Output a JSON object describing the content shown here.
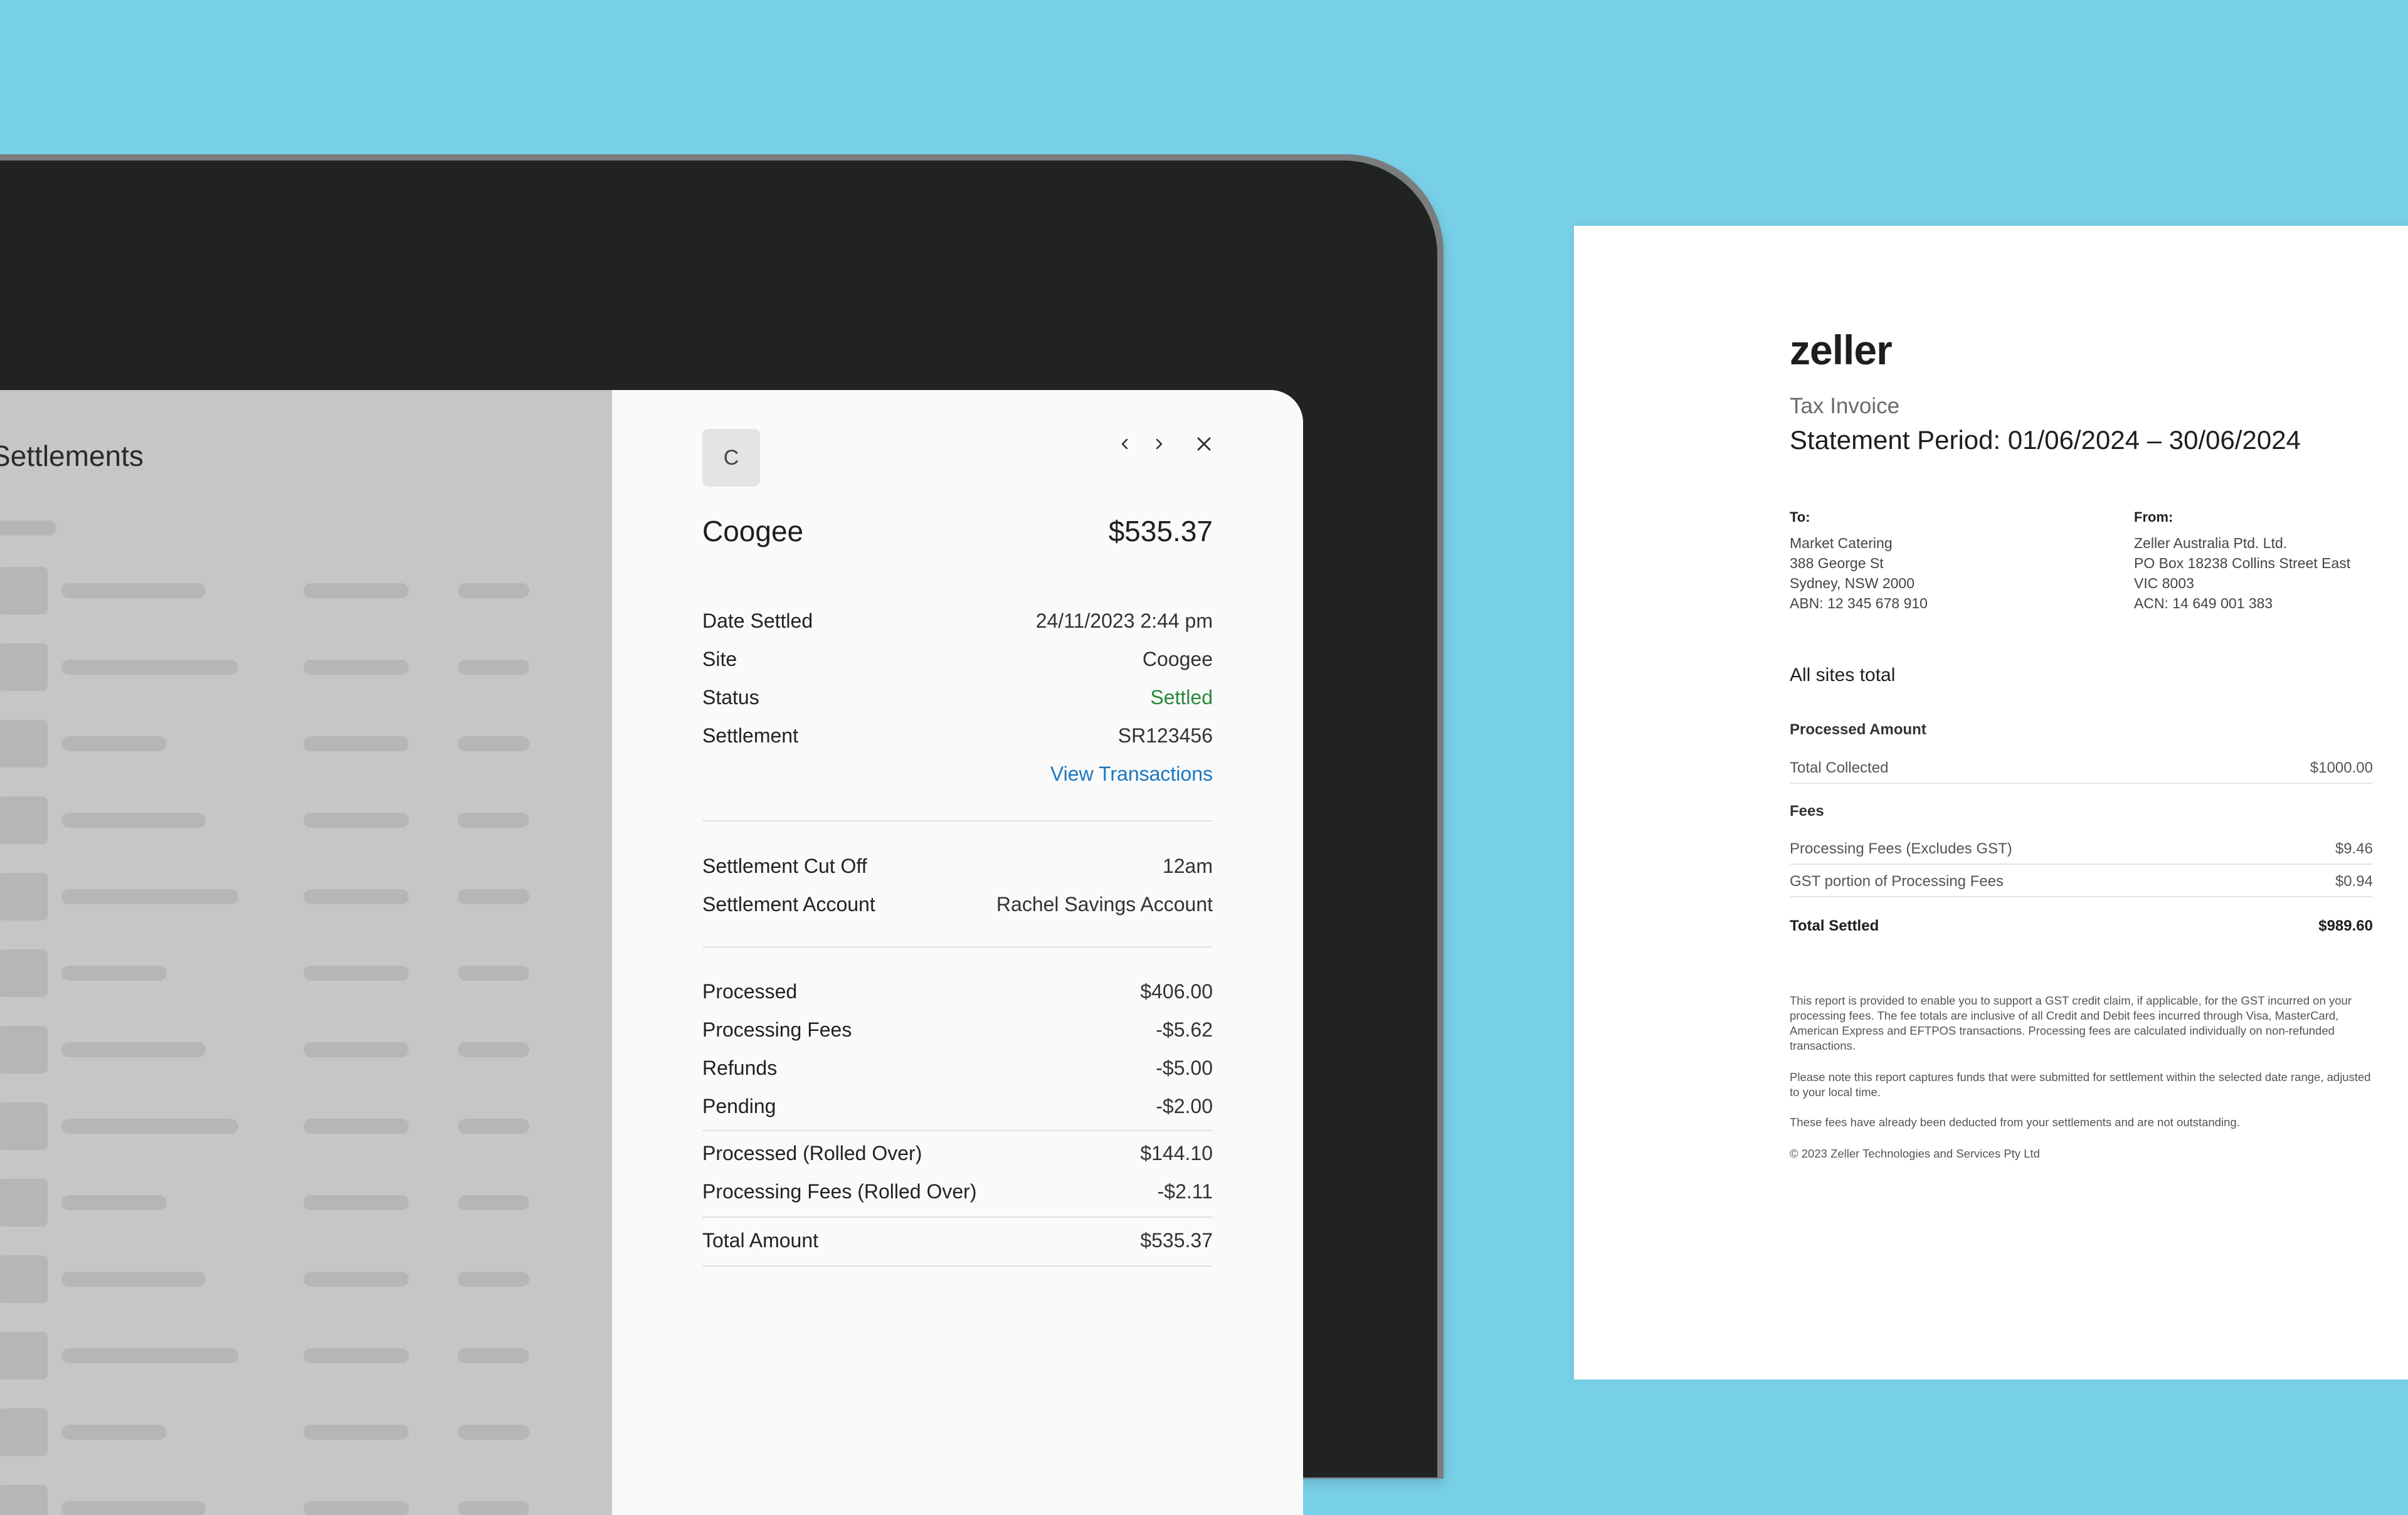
{
  "list": {
    "title": "Settlements"
  },
  "detail": {
    "avatar_initial": "C",
    "site_name": "Coogee",
    "amount": "$535.37",
    "info": [
      {
        "label": "Date Settled",
        "value": "24/11/2023 2:44 pm"
      },
      {
        "label": "Site",
        "value": "Coogee"
      },
      {
        "label": "Status",
        "value": "Settled"
      },
      {
        "label": "Settlement",
        "value": "SR123456"
      }
    ],
    "view_transactions": "View Transactions",
    "settings": [
      {
        "label": "Settlement Cut Off",
        "value": "12am"
      },
      {
        "label": "Settlement Account",
        "value": "Rachel Savings Account"
      }
    ],
    "amounts": [
      {
        "label": "Processed",
        "value": "$406.00"
      },
      {
        "label": "Processing Fees",
        "value": "-$5.62"
      },
      {
        "label": "Refunds",
        "value": "-$5.00"
      },
      {
        "label": "Pending",
        "value": "-$2.00"
      }
    ],
    "rolled_over": [
      {
        "label": "Processed (Rolled Over)",
        "value": "$144.10"
      },
      {
        "label": "Processing Fees (Rolled Over)",
        "value": "-$2.11"
      }
    ],
    "total": {
      "label": "Total Amount",
      "value": "$535.37"
    },
    "colors": {
      "status": "#2a8a3d",
      "link": "#1a78c2"
    }
  },
  "invoice": {
    "logo": "zeller",
    "doc_type": "Tax Invoice",
    "period": "Statement Period: 01/06/2024 – 30/06/2024",
    "to": {
      "heading": "To:",
      "lines": [
        "Market Catering",
        "388 George St",
        "Sydney, NSW 2000",
        "ABN: 12 345 678 910"
      ]
    },
    "from": {
      "heading": "From:",
      "lines": [
        "Zeller Australia Ptd. Ltd.",
        "PO Box 18238 Collins Street East",
        "VIC 8003",
        "ACN: 14 649 001 383"
      ]
    },
    "section_title": "All sites total",
    "processed_heading": "Processed Amount",
    "total_collected": {
      "label": "Total Collected",
      "value": "$1000.00"
    },
    "fees_heading": "Fees",
    "fees": [
      {
        "label": "Processing Fees (Excludes GST)",
        "value": "$9.46"
      },
      {
        "label": "GST portion of Processing Fees",
        "value": "$0.94"
      }
    ],
    "total_settled": {
      "label": "Total Settled",
      "value": "$989.60"
    },
    "notes": [
      "This report is provided to enable you to support a GST credit claim, if applicable, for the GST incurred on your processing fees. The fee totals are inclusive of all Credit and Debit fees incurred through Visa, MasterCard, American Express and EFTPOS transactions. Processing fees are calculated individually on non-refunded transactions.",
      "Please note this report captures funds that were submitted for settlement within the selected date range, adjusted to your local time.",
      "These fees have already been deducted from your settlements and are not outstanding.",
      "© 2023 Zeller Technologies and Services Pty Ltd"
    ]
  },
  "background_color": "#78cfe8"
}
